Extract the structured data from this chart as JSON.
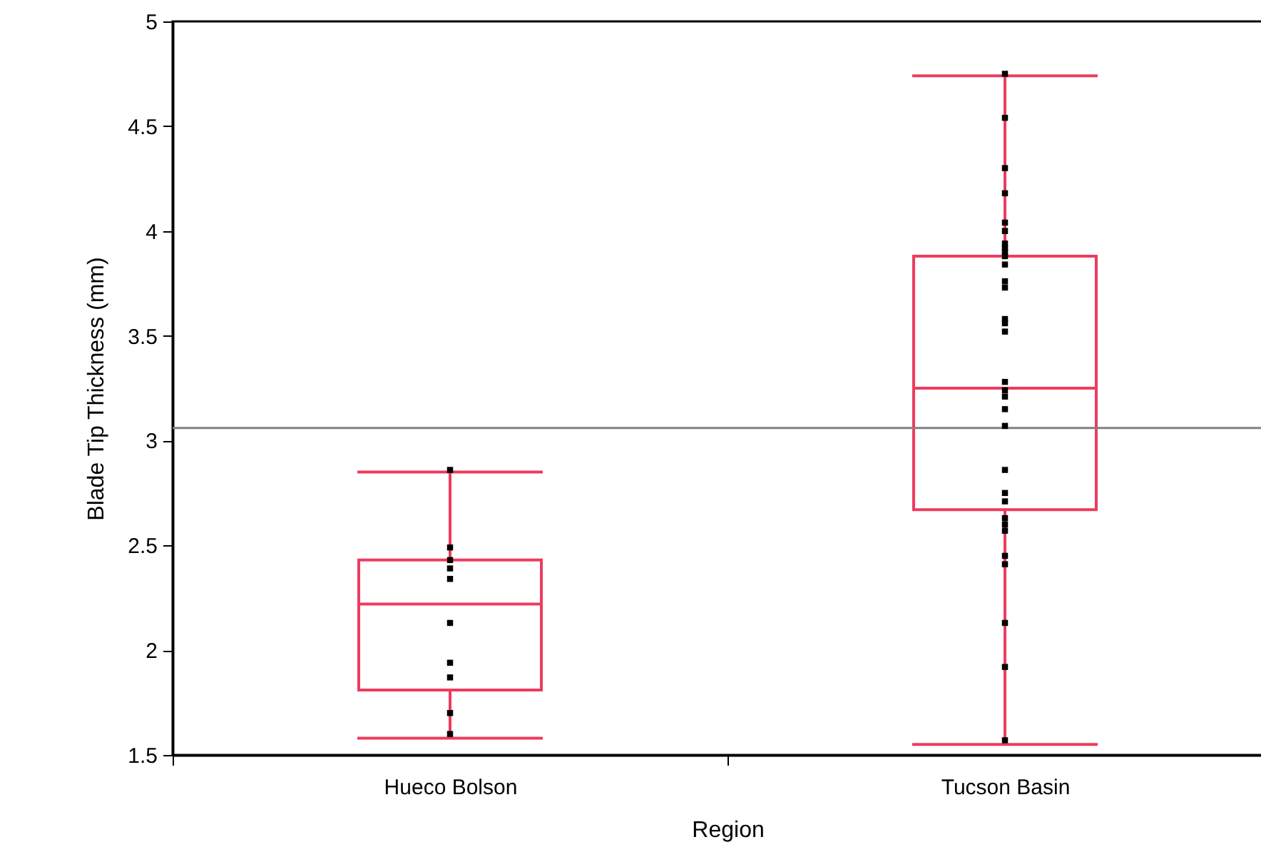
{
  "chart_data": {
    "type": "box",
    "xlabel": "Region",
    "ylabel": "Blade Tip Thickness (mm)",
    "categories": [
      "Hueco Bolson",
      "Tucson Basin"
    ],
    "ylim": [
      1.5,
      5
    ],
    "yticks": [
      1.5,
      2,
      2.5,
      3,
      3.5,
      4,
      4.5,
      5
    ],
    "marker": "square",
    "ref_lines": [
      {
        "axis": "y",
        "value": 3.06,
        "color": "#808080"
      }
    ],
    "series": [
      {
        "color": "#ee3b5e",
        "boxes": [
          {
            "low": 1.58,
            "q1": 1.81,
            "median": 2.22,
            "q3": 2.43,
            "high": 2.85
          },
          {
            "low": 1.55,
            "q1": 2.67,
            "median": 3.25,
            "q3": 3.88,
            "high": 4.74
          }
        ]
      },
      {
        "type": "scatter",
        "color": "#000000",
        "x": [
          "Hueco Bolson",
          "Hueco Bolson",
          "Hueco Bolson",
          "Hueco Bolson",
          "Hueco Bolson",
          "Hueco Bolson",
          "Hueco Bolson",
          "Hueco Bolson",
          "Hueco Bolson",
          "Hueco Bolson",
          "Tucson Basin",
          "Tucson Basin",
          "Tucson Basin",
          "Tucson Basin",
          "Tucson Basin",
          "Tucson Basin",
          "Tucson Basin",
          "Tucson Basin",
          "Tucson Basin",
          "Tucson Basin",
          "Tucson Basin",
          "Tucson Basin",
          "Tucson Basin",
          "Tucson Basin",
          "Tucson Basin",
          "Tucson Basin",
          "Tucson Basin",
          "Tucson Basin",
          "Tucson Basin",
          "Tucson Basin",
          "Tucson Basin",
          "Tucson Basin",
          "Tucson Basin",
          "Tucson Basin",
          "Tucson Basin",
          "Tucson Basin",
          "Tucson Basin",
          "Tucson Basin",
          "Tucson Basin",
          "Tucson Basin",
          "Tucson Basin",
          "Tucson Basin"
        ],
        "values": [
          2.86,
          2.49,
          2.43,
          2.39,
          2.34,
          2.13,
          1.94,
          1.87,
          1.7,
          1.6,
          4.75,
          4.54,
          4.3,
          4.18,
          4.04,
          4.0,
          3.94,
          3.92,
          3.9,
          3.88,
          3.84,
          3.76,
          3.73,
          3.58,
          3.56,
          3.52,
          3.28,
          3.24,
          3.21,
          3.15,
          3.07,
          2.86,
          2.75,
          2.71,
          2.63,
          2.6,
          2.57,
          2.45,
          2.41,
          2.13,
          1.92,
          1.57
        ]
      }
    ]
  }
}
